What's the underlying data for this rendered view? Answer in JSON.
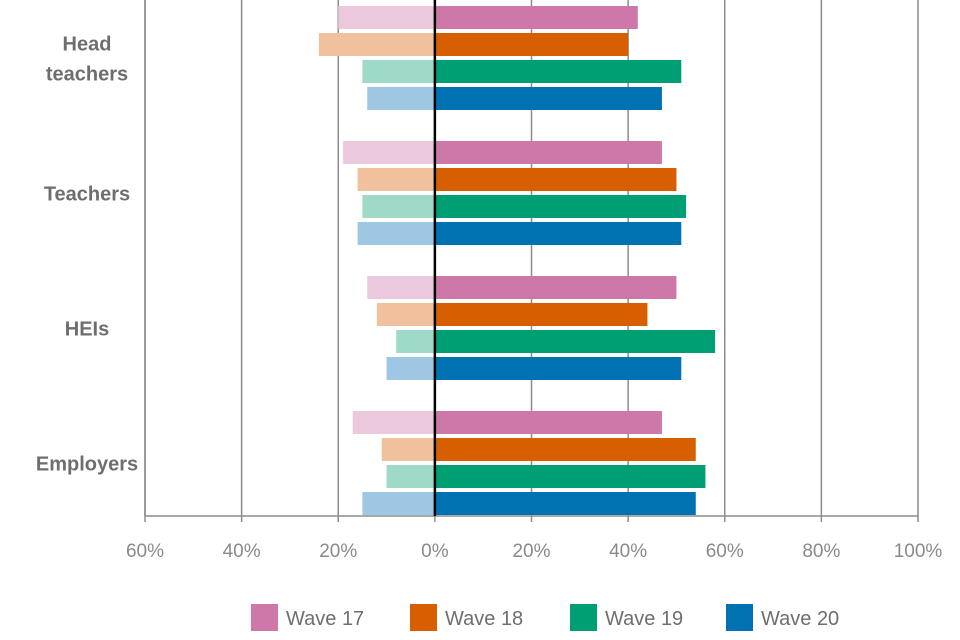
{
  "chart_data": {
    "type": "bar",
    "orientation": "horizontal-diverging",
    "categories": [
      "Head teachers",
      "Teachers",
      "HEIs",
      "Employers"
    ],
    "category_lines": [
      [
        "Head",
        "teachers"
      ],
      [
        "Teachers"
      ],
      [
        "HEIs"
      ],
      [
        "Employers"
      ]
    ],
    "series": [
      {
        "name": "Wave 17",
        "color": "#cd78a8",
        "color_light": "#ebc8dc",
        "negative": [
          -20,
          -19,
          -14,
          -17
        ],
        "positive": [
          42,
          47,
          50,
          47
        ]
      },
      {
        "name": "Wave 18",
        "color": "#d75f00",
        "color_light": "#f0c19c",
        "negative": [
          -24,
          -16,
          -12,
          -11
        ],
        "positive": [
          40,
          50,
          44,
          54
        ]
      },
      {
        "name": "Wave 19",
        "color": "#009e73",
        "color_light": "#9fdac8",
        "negative": [
          -15,
          -15,
          -8,
          -10
        ],
        "positive": [
          51,
          52,
          58,
          56
        ]
      },
      {
        "name": "Wave 20",
        "color": "#0072b2",
        "color_light": "#9dc7e2",
        "negative": [
          -14,
          -16,
          -10,
          -15
        ],
        "positive": [
          47,
          51,
          51,
          54
        ]
      }
    ],
    "xlim": [
      -60,
      100
    ],
    "xticks": [
      -60,
      -40,
      -20,
      0,
      20,
      40,
      60,
      80,
      100
    ],
    "xtick_labels": [
      "60%",
      "40%",
      "20%",
      "0%",
      "20%",
      "40%",
      "60%",
      "80%",
      "100%"
    ],
    "grid": true,
    "legend": "bottom",
    "title": "",
    "xlabel": "",
    "ylabel": ""
  }
}
